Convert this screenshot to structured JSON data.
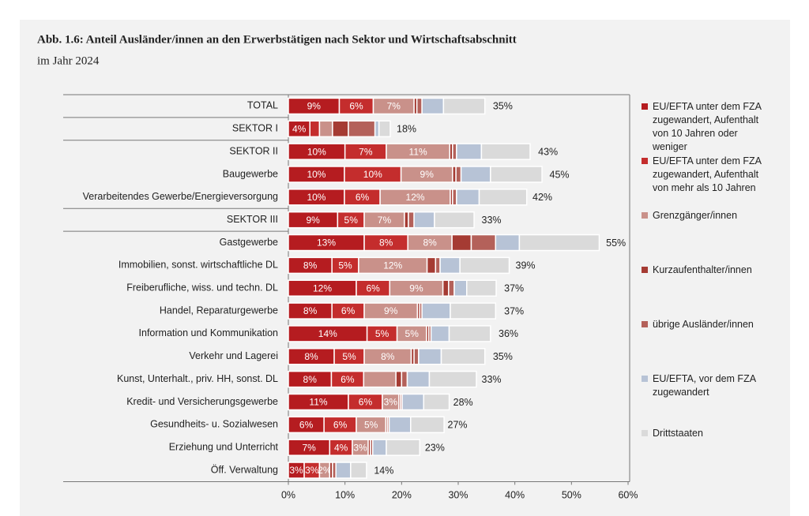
{
  "chart_data": {
    "type": "stacked_barh",
    "title": "Abb. 1.6: Anteil Ausländer/innen an den Erwerbstätigen nach Sektor und Wirtschaftsabschnitt",
    "subtitle": "im Jahr 2024",
    "categories": [
      "TOTAL",
      "SEKTOR I",
      "SEKTOR II",
      "Baugewerbe",
      "Verarbeitendes Gewerbe/Energieversorgung",
      "SEKTOR III",
      "Gastgewerbe",
      "Immobilien, sonst. wirtschaftliche DL",
      "Freiberufliche, wiss. und techn. DL",
      "Handel, Reparaturgewerbe",
      "Information und Kommunikation",
      "Verkehr und Lagerei",
      "Kunst, Unterhalt., priv. HH, sonst. DL",
      "Kredit- und Versicherungsgewerbe",
      "Gesundheits- u. Sozialwesen",
      "Erziehung und Unterricht",
      "Öff. Verwaltung"
    ],
    "series": [
      {
        "name": "EU/EFTA unter dem FZA zugewandert, Aufenthalt von 10 Jahren oder weniger",
        "color": "#b51c20",
        "values": [
          9.0,
          3.8,
          10.0,
          9.9,
          9.9,
          8.7,
          13.4,
          7.7,
          12.0,
          7.7,
          13.9,
          8.1,
          7.6,
          10.6,
          6.3,
          7.3,
          2.8
        ],
        "value_labels": [
          "9%",
          "4%",
          "10%",
          "10%",
          "10%",
          "9%",
          "13%",
          "8%",
          "12%",
          "8%",
          "14%",
          "8%",
          "8%",
          "11%",
          "6%",
          "7%",
          "3%"
        ]
      },
      {
        "name": "EU/EFTA unter dem FZA zugewandert, Aufenthalt von mehr als 10 Jahren",
        "color": "#c42d2d",
        "values": [
          6.0,
          1.7,
          7.3,
          10.0,
          6.3,
          4.7,
          7.7,
          4.7,
          5.9,
          5.7,
          5.3,
          5.3,
          5.7,
          6.0,
          5.7,
          4.0,
          2.7
        ],
        "value_labels": [
          "6%",
          null,
          "7%",
          "10%",
          "6%",
          "5%",
          "8%",
          "5%",
          "6%",
          "6%",
          "5%",
          "5%",
          "6%",
          "6%",
          "6%",
          "4%",
          "3%"
        ]
      },
      {
        "name": "Grenzgänger/innen",
        "color": "#c9918a",
        "values": [
          7.2,
          2.3,
          11.2,
          9.1,
          12.4,
          7.1,
          7.8,
          12.1,
          9.4,
          9.4,
          5.2,
          8.3,
          5.7,
          2.9,
          5.2,
          2.8,
          1.8
        ],
        "value_labels": [
          "7%",
          null,
          "11%",
          "9%",
          "12%",
          "7%",
          "8%",
          "12%",
          "9%",
          "9%",
          "5%",
          "8%",
          null,
          "3%",
          "5%",
          "3%",
          "2%"
        ]
      },
      {
        "name": "Kurzaufenthalter/innen",
        "color": "#a53b33",
        "values": [
          0.5,
          2.8,
          0.5,
          0.6,
          0.4,
          0.7,
          3.4,
          1.5,
          1.0,
          0.4,
          0.4,
          0.5,
          1.0,
          0.3,
          0.3,
          0.4,
          0.5
        ]
      },
      {
        "name": "übrige Ausländer/innen",
        "color": "#b4615a",
        "values": [
          0.9,
          4.7,
          0.7,
          0.9,
          0.7,
          1.0,
          4.3,
          0.8,
          1.0,
          0.4,
          0.4,
          0.8,
          1.0,
          0.3,
          0.3,
          0.4,
          0.6
        ]
      },
      {
        "name": "EU/EFTA, vor dem FZA zugewandert",
        "color": "#b7c3d6",
        "values": [
          3.8,
          0.7,
          4.4,
          5.2,
          4.0,
          3.6,
          4.2,
          3.5,
          2.2,
          5.0,
          3.2,
          4.0,
          3.9,
          3.8,
          3.8,
          2.4,
          2.6
        ]
      },
      {
        "name": "Drittstaaten",
        "color": "#dadada",
        "values": [
          7.3,
          2.0,
          8.6,
          9.1,
          8.4,
          7.0,
          14.1,
          8.7,
          5.2,
          8.0,
          7.3,
          7.7,
          8.3,
          4.5,
          5.9,
          5.9,
          2.8
        ]
      }
    ],
    "totals": [
      35,
      18,
      43,
      45,
      42,
      33,
      55,
      39,
      37,
      37,
      36,
      35,
      33,
      28,
      27,
      23,
      14
    ],
    "total_labels": [
      "35%",
      "18%",
      "43%",
      "45%",
      "42%",
      "33%",
      "55%",
      "39%",
      "37%",
      "37%",
      "36%",
      "35%",
      "33%",
      "28%",
      "27%",
      "23%",
      "14%"
    ],
    "xlim": [
      0,
      60
    ],
    "xticks": [
      {
        "value": 0,
        "label": "0%"
      },
      {
        "value": 10,
        "label": "10%"
      },
      {
        "value": 20,
        "label": "20%"
      },
      {
        "value": 30,
        "label": "30%"
      },
      {
        "value": 40,
        "label": "40%"
      },
      {
        "value": 50,
        "label": "50%"
      },
      {
        "value": 60,
        "label": "60%"
      }
    ],
    "legend": "right"
  }
}
